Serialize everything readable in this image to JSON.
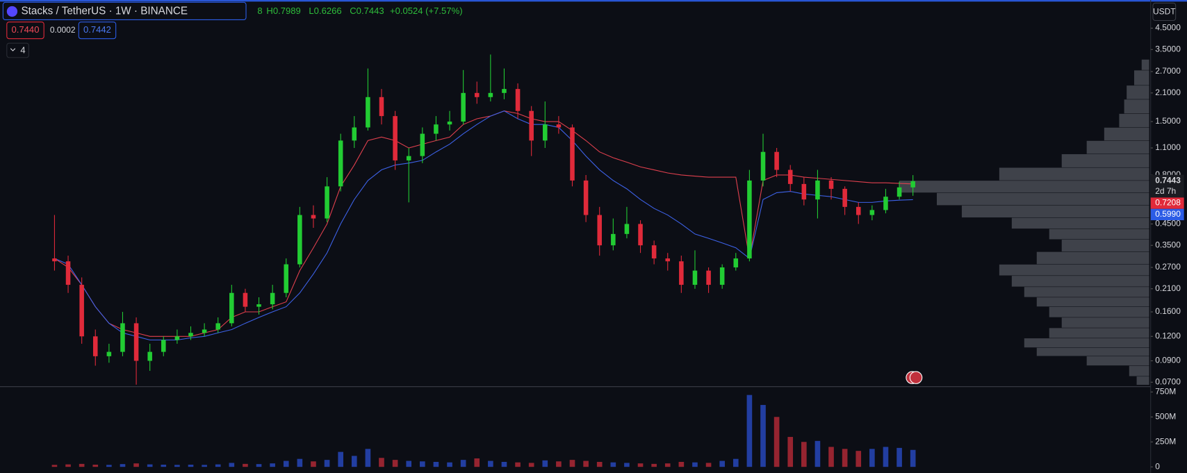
{
  "chart_data": {
    "type": "candlestick",
    "title": "Stacks / TetherUS · 1W · BINANCE",
    "legend": {
      "open_partial": "8",
      "high": "H0.7989",
      "low": "L0.6266",
      "close": "C0.7443",
      "change": "+0.0524 (+7.57%)"
    },
    "quote": {
      "bid": "0.7440",
      "spread": "0.0002",
      "ask": "0.7442"
    },
    "indicator_count": "4",
    "currency": "USDT",
    "log_scale": true,
    "grid": false,
    "up_color": "#22cc33",
    "down_color": "#e02a3a",
    "open": [
      0.3,
      0.29,
      0.22,
      0.12,
      0.095,
      0.1,
      0.14,
      0.09,
      0.1,
      0.115,
      0.12,
      0.125,
      0.13,
      0.14,
      0.2,
      0.17,
      0.175,
      0.2,
      0.28,
      0.5,
      0.48,
      0.7,
      1.2,
      1.4,
      2.0,
      1.6,
      0.95,
      1.0,
      1.3,
      1.45,
      1.5,
      2.1,
      2.0,
      2.1,
      2.2,
      1.7,
      1.2,
      1.45,
      1.4,
      0.75,
      0.5,
      0.35,
      0.4,
      0.45,
      0.35,
      0.3,
      0.29,
      0.22,
      0.26,
      0.22,
      0.27,
      0.3,
      0.75,
      1.05,
      0.85,
      0.72,
      0.6,
      0.75,
      0.68,
      0.55,
      0.5,
      0.53,
      0.62,
      0.6918
    ],
    "high": [
      0.5,
      0.31,
      0.24,
      0.13,
      0.11,
      0.16,
      0.15,
      0.11,
      0.12,
      0.13,
      0.135,
      0.14,
      0.15,
      0.22,
      0.21,
      0.19,
      0.22,
      0.3,
      0.55,
      0.56,
      0.78,
      1.3,
      1.6,
      2.8,
      2.2,
      1.7,
      1.1,
      1.4,
      1.6,
      1.7,
      2.75,
      2.4,
      3.3,
      2.8,
      2.35,
      1.8,
      1.9,
      1.6,
      1.45,
      0.8,
      0.55,
      0.48,
      0.55,
      0.47,
      0.37,
      0.32,
      0.31,
      0.33,
      0.27,
      0.28,
      0.32,
      0.85,
      1.3,
      1.1,
      0.9,
      0.78,
      0.85,
      0.78,
      0.7,
      0.58,
      0.56,
      0.68,
      0.74,
      0.7989
    ],
    "low": [
      0.26,
      0.2,
      0.11,
      0.085,
      0.088,
      0.095,
      0.068,
      0.08,
      0.095,
      0.11,
      0.115,
      0.12,
      0.125,
      0.135,
      0.16,
      0.155,
      0.165,
      0.19,
      0.27,
      0.43,
      0.46,
      0.66,
      1.1,
      1.35,
      1.45,
      0.85,
      0.58,
      0.92,
      1.2,
      1.35,
      1.45,
      1.85,
      1.9,
      1.95,
      1.55,
      1.0,
      1.1,
      1.3,
      0.7,
      0.46,
      0.31,
      0.33,
      0.38,
      0.32,
      0.28,
      0.26,
      0.2,
      0.21,
      0.2,
      0.21,
      0.26,
      0.29,
      0.7,
      0.78,
      0.66,
      0.56,
      0.48,
      0.6,
      0.5,
      0.45,
      0.47,
      0.51,
      0.6,
      0.6266
    ],
    "close": [
      0.29,
      0.22,
      0.12,
      0.095,
      0.1,
      0.14,
      0.09,
      0.1,
      0.115,
      0.12,
      0.125,
      0.13,
      0.14,
      0.2,
      0.17,
      0.175,
      0.2,
      0.28,
      0.5,
      0.48,
      0.7,
      1.2,
      1.4,
      2.0,
      1.6,
      0.95,
      1.0,
      1.3,
      1.45,
      1.5,
      2.1,
      2.0,
      2.1,
      2.2,
      1.7,
      1.2,
      1.45,
      1.4,
      0.75,
      0.5,
      0.35,
      0.4,
      0.45,
      0.35,
      0.3,
      0.29,
      0.22,
      0.26,
      0.22,
      0.27,
      0.3,
      0.75,
      1.05,
      0.85,
      0.72,
      0.6,
      0.75,
      0.68,
      0.55,
      0.5,
      0.53,
      0.62,
      0.6919,
      0.7443
    ],
    "ylim": [
      0.0664,
      6.26
    ],
    "yticks": [
      {
        "value": 4.5,
        "label": "4.5000"
      },
      {
        "value": 3.5,
        "label": "3.5000"
      },
      {
        "value": 2.7,
        "label": "2.7000"
      },
      {
        "value": 2.1,
        "label": "2.1000"
      },
      {
        "value": 1.5,
        "label": "1.5000"
      },
      {
        "value": 1.1,
        "label": "1.1000"
      },
      {
        "value": 0.8,
        "label": "0.8000"
      },
      {
        "value": 0.45,
        "label": "0.4500"
      },
      {
        "value": 0.35,
        "label": "0.3500"
      },
      {
        "value": 0.27,
        "label": "0.2700"
      },
      {
        "value": 0.21,
        "label": "0.2100"
      },
      {
        "value": 0.16,
        "label": "0.1600"
      },
      {
        "value": 0.12,
        "label": "0.1200"
      },
      {
        "value": 0.09,
        "label": "0.0900"
      },
      {
        "value": 0.07,
        "label": "0.0700"
      }
    ],
    "lines": [
      {
        "color": "#e0404e",
        "values": [
          0.3,
          0.27,
          0.22,
          0.17,
          0.14,
          0.13,
          0.125,
          0.12,
          0.12,
          0.12,
          0.12,
          0.125,
          0.13,
          0.15,
          0.16,
          0.16,
          0.17,
          0.18,
          0.26,
          0.34,
          0.45,
          0.7,
          0.9,
          1.2,
          1.25,
          1.2,
          1.1,
          1.15,
          1.2,
          1.25,
          1.45,
          1.55,
          1.6,
          1.7,
          1.65,
          1.55,
          1.5,
          1.5,
          1.35,
          1.2,
          1.05,
          0.98,
          0.93,
          0.88,
          0.85,
          0.82,
          0.8,
          0.79,
          0.78,
          0.78,
          0.78,
          0.3,
          0.75,
          0.8,
          0.8,
          0.78,
          0.77,
          0.76,
          0.75,
          0.74,
          0.73,
          0.73,
          0.725,
          0.7208
        ]
      },
      {
        "color": "#3d62e8",
        "values": [
          0.3,
          0.28,
          0.22,
          0.17,
          0.14,
          0.125,
          0.12,
          0.115,
          0.115,
          0.115,
          0.118,
          0.12,
          0.125,
          0.13,
          0.14,
          0.15,
          0.16,
          0.17,
          0.2,
          0.25,
          0.32,
          0.45,
          0.6,
          0.75,
          0.85,
          0.9,
          0.92,
          0.95,
          1.05,
          1.15,
          1.3,
          1.45,
          1.6,
          1.7,
          1.55,
          1.45,
          1.45,
          1.4,
          1.2,
          1.0,
          0.85,
          0.75,
          0.68,
          0.6,
          0.54,
          0.5,
          0.45,
          0.4,
          0.38,
          0.36,
          0.34,
          0.3,
          0.6,
          0.65,
          0.66,
          0.64,
          0.63,
          0.62,
          0.6,
          0.58,
          0.58,
          0.59,
          0.595,
          0.599
        ]
      }
    ],
    "price_labels": {
      "last": "0.7443",
      "countdown": "2d 7h",
      "red_line": "0.7208",
      "blue_line": "0.5990"
    },
    "volume": {
      "values": [
        20000000,
        25000000,
        30000000,
        22000000,
        20000000,
        28000000,
        35000000,
        25000000,
        22000000,
        20000000,
        22000000,
        20000000,
        25000000,
        40000000,
        30000000,
        28000000,
        35000000,
        60000000,
        80000000,
        55000000,
        70000000,
        150000000,
        110000000,
        180000000,
        90000000,
        70000000,
        60000000,
        55000000,
        50000000,
        45000000,
        70000000,
        85000000,
        60000000,
        50000000,
        45000000,
        40000000,
        65000000,
        55000000,
        70000000,
        60000000,
        50000000,
        45000000,
        40000000,
        35000000,
        30000000,
        35000000,
        50000000,
        45000000,
        40000000,
        60000000,
        80000000,
        720000000,
        620000000,
        500000000,
        300000000,
        250000000,
        260000000,
        200000000,
        180000000,
        160000000,
        180000000,
        200000000,
        190000000,
        170000000
      ],
      "ylim": [
        0,
        803000000
      ],
      "yticks": [
        {
          "value": 750000000,
          "label": "750M"
        },
        {
          "value": 500000000,
          "label": "500M"
        },
        {
          "value": 250000000,
          "label": "250M"
        },
        0
      ],
      "up_color": "#2a4fd0",
      "down_color": "#c42c3a"
    },
    "volume_profile": {
      "prices": [
        0.07,
        0.08,
        0.09,
        0.1,
        0.11,
        0.125,
        0.14,
        0.16,
        0.18,
        0.2,
        0.23,
        0.26,
        0.3,
        0.35,
        0.4,
        0.45,
        0.52,
        0.6,
        0.7,
        0.8,
        0.95,
        1.1,
        1.3,
        1.5,
        1.8,
        2.1,
        2.5,
        3.0
      ],
      "values": [
        5,
        8,
        25,
        45,
        50,
        40,
        35,
        40,
        45,
        50,
        55,
        60,
        45,
        35,
        40,
        55,
        75,
        85,
        100,
        60,
        35,
        25,
        18,
        12,
        10,
        9,
        6,
        3
      ],
      "xlim": [
        0,
        100
      ],
      "color": "#6a6d76"
    }
  }
}
